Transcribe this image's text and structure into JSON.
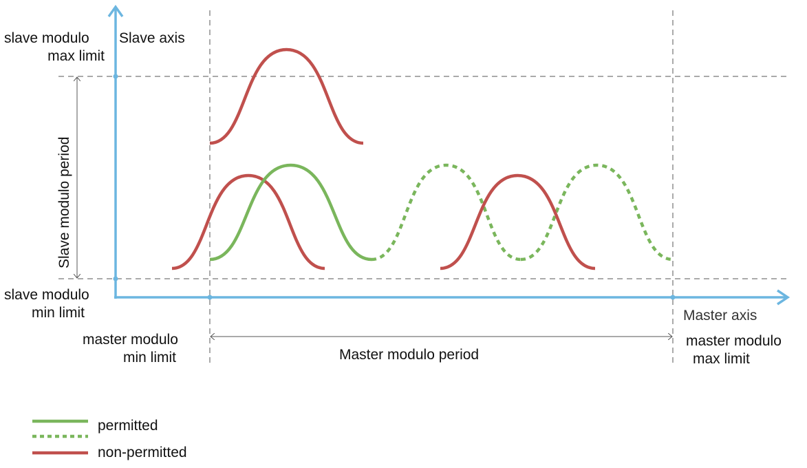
{
  "colors": {
    "axis": "#6cb6e0",
    "permitted": "#7ab65c",
    "non_permitted": "#c0504d",
    "guide": "#555555"
  },
  "labels": {
    "slave_axis": "Slave axis",
    "master_axis": "Master axis",
    "slave_max": [
      "slave modulo",
      "max limit"
    ],
    "slave_min": [
      "slave modulo",
      "min limit"
    ],
    "master_min": [
      "master modulo",
      "min limit"
    ],
    "master_max": [
      "master modulo",
      "max limit"
    ],
    "slave_period": "Slave  modulo  period",
    "master_period": "Master modulo period"
  },
  "legend": [
    {
      "label": "permitted",
      "style": "solid",
      "color": "#7ab65c"
    },
    {
      "label": "",
      "style": "dotted",
      "color": "#7ab65c"
    },
    {
      "label": "non-permitted",
      "style": "solid",
      "color": "#c0504d"
    }
  ]
}
